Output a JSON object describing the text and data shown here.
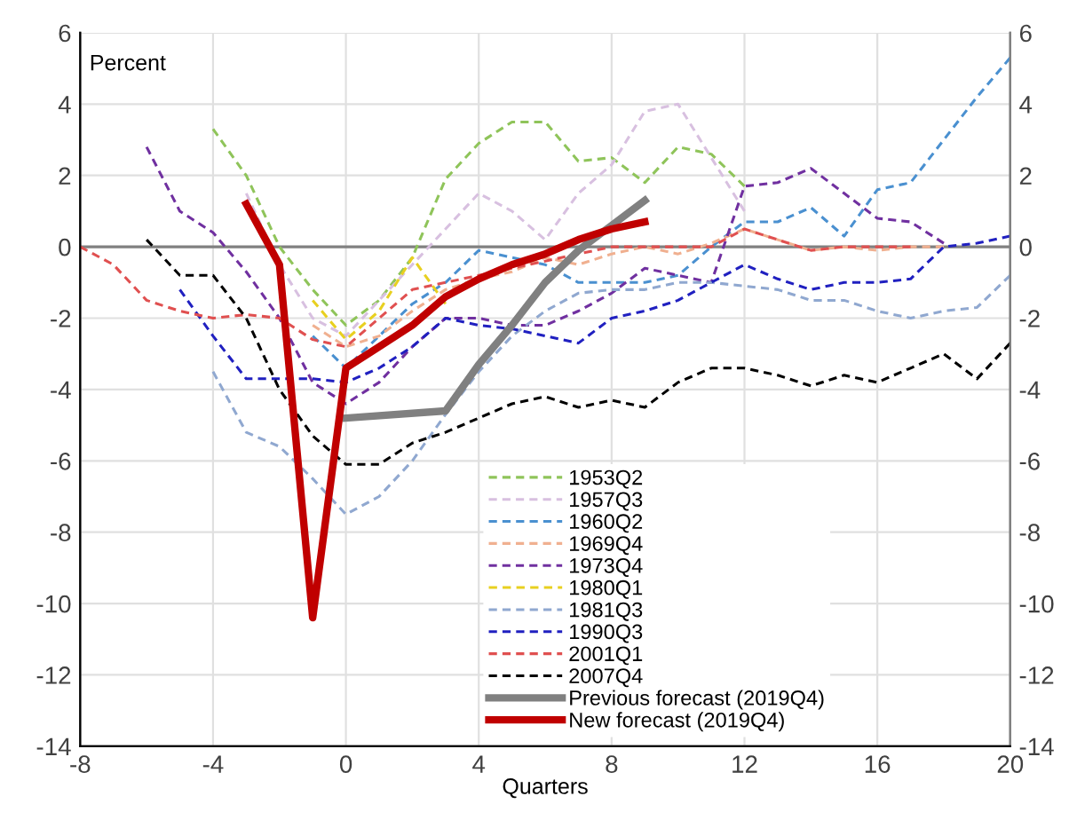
{
  "chart_data": {
    "type": "line",
    "ylabel": "Percent",
    "xlabel": "Quarters",
    "xlim": [
      -8,
      20
    ],
    "xticks": [
      -8,
      -4,
      0,
      4,
      8,
      12,
      16,
      20
    ],
    "ylim": [
      -14,
      6
    ],
    "yticks": [
      -14,
      -12,
      -10,
      -8,
      -6,
      -4,
      -2,
      0,
      2,
      4,
      6
    ],
    "y2lim": [
      -14,
      6
    ],
    "y2ticks": [
      -14,
      -12,
      -10,
      -8,
      -6,
      -4,
      -2,
      0,
      2,
      4,
      6
    ],
    "grid": true,
    "legend": "bottom",
    "line_style": "dashed",
    "ref_lines": [
      {
        "axis": "y",
        "value": 0,
        "color": "#808080",
        "line_style": "solid"
      }
    ],
    "series": [
      {
        "name": "1953Q2",
        "color": "#8fc45a",
        "x": [
          -4,
          -3,
          -2,
          -1,
          0,
          1,
          2,
          3,
          4,
          5,
          6,
          7,
          8,
          9,
          10,
          11,
          12
        ],
        "values": [
          3.3,
          2.0,
          0.0,
          -1.2,
          -2.2,
          -1.5,
          -0.3,
          1.9,
          2.9,
          3.5,
          3.5,
          2.4,
          2.5,
          1.8,
          2.8,
          2.6,
          1.7
        ]
      },
      {
        "name": "1957Q3",
        "color": "#d8c0e0",
        "x": [
          -3,
          -2,
          -1,
          0,
          1,
          2,
          3,
          4,
          5,
          6,
          7,
          8,
          9,
          10,
          11,
          12
        ],
        "values": [
          1.5,
          -0.5,
          -2.0,
          -2.5,
          -1.5,
          -0.5,
          0.5,
          1.5,
          1.0,
          0.2,
          1.5,
          2.3,
          3.8,
          4.0,
          2.5,
          1.0
        ]
      },
      {
        "name": "1960Q2",
        "color": "#4a90d0",
        "x": [
          -1,
          0,
          1,
          2,
          3,
          4,
          5,
          6,
          7,
          8,
          9,
          10,
          11,
          12,
          13,
          14,
          15,
          16,
          17,
          18,
          19,
          20
        ],
        "values": [
          -2.5,
          -3.4,
          -2.5,
          -1.6,
          -1.0,
          -0.1,
          -0.3,
          -0.5,
          -1.0,
          -1.0,
          -1.0,
          -0.8,
          0.0,
          0.7,
          0.7,
          1.1,
          0.3,
          1.6,
          1.8,
          3.0,
          4.2,
          5.3
        ]
      },
      {
        "name": "1969Q4",
        "color": "#f0b090",
        "x": [
          -1,
          0,
          1,
          2,
          3,
          4,
          5,
          6,
          7,
          8,
          9,
          10,
          11,
          12,
          13,
          14,
          15,
          16,
          17,
          18
        ],
        "values": [
          -2.2,
          -2.8,
          -2.5,
          -1.8,
          -1.2,
          -0.9,
          -0.7,
          -0.3,
          -0.5,
          -0.2,
          0.0,
          -0.2,
          0.1,
          0.5,
          0.2,
          -0.1,
          0.0,
          -0.1,
          0.0,
          0.0
        ]
      },
      {
        "name": "1973Q4",
        "color": "#7030a0",
        "x": [
          -6,
          -5,
          -4,
          -3,
          -2,
          -1,
          0,
          1,
          2,
          3,
          4,
          5,
          6,
          7,
          8,
          9,
          10,
          11,
          12,
          13,
          14,
          15,
          16,
          17,
          18
        ],
        "values": [
          2.8,
          1.0,
          0.4,
          -0.7,
          -2.0,
          -3.8,
          -4.4,
          -3.8,
          -2.8,
          -2.0,
          -2.0,
          -2.2,
          -2.2,
          -1.8,
          -1.3,
          -0.6,
          -0.8,
          -1.0,
          1.7,
          1.8,
          2.2,
          1.5,
          0.8,
          0.7,
          0.1
        ]
      },
      {
        "name": "1980Q1",
        "color": "#e8d020",
        "x": [
          -1,
          0,
          1,
          2,
          3
        ],
        "values": [
          -1.5,
          -2.6,
          -1.8,
          -0.3,
          -1.6
        ]
      },
      {
        "name": "1981Q3",
        "color": "#90a8d0",
        "x": [
          -4,
          -3,
          -2,
          -1,
          0,
          1,
          2,
          3,
          4,
          5,
          6,
          7,
          8,
          9,
          10,
          11,
          12,
          13,
          14,
          15,
          16,
          17,
          18,
          19,
          20
        ],
        "values": [
          -3.5,
          -5.2,
          -5.6,
          -6.5,
          -7.5,
          -7.0,
          -6.0,
          -4.7,
          -3.5,
          -2.5,
          -1.8,
          -1.3,
          -1.2,
          -1.2,
          -1.0,
          -1.0,
          -1.1,
          -1.2,
          -1.5,
          -1.5,
          -1.8,
          -2.0,
          -1.8,
          -1.7,
          -0.8
        ]
      },
      {
        "name": "1990Q3",
        "color": "#2020c0",
        "x": [
          -5,
          -4,
          -3,
          -2,
          -1,
          0,
          1,
          2,
          3,
          4,
          5,
          6,
          7,
          8,
          9,
          10,
          11,
          12,
          13,
          14,
          15,
          16,
          17,
          18,
          19,
          20
        ],
        "values": [
          -1.2,
          -2.5,
          -3.7,
          -3.7,
          -3.7,
          -3.8,
          -3.4,
          -2.8,
          -2.0,
          -2.2,
          -2.3,
          -2.5,
          -2.7,
          -2.0,
          -1.8,
          -1.5,
          -1.0,
          -0.5,
          -0.9,
          -1.2,
          -1.0,
          -1.0,
          -0.9,
          0.0,
          0.1,
          0.3
        ]
      },
      {
        "name": "2001Q1",
        "color": "#e05050",
        "x": [
          -8,
          -7,
          -6,
          -5,
          -4,
          -3,
          -2,
          -1,
          0,
          1,
          2,
          3,
          4,
          5,
          6,
          7,
          8,
          9,
          10,
          11,
          12,
          13,
          14,
          15,
          16,
          17
        ],
        "values": [
          0.0,
          -0.5,
          -1.5,
          -1.8,
          -2.0,
          -1.9,
          -2.0,
          -2.6,
          -2.8,
          -2.0,
          -1.2,
          -1.0,
          -0.8,
          -0.6,
          -0.4,
          -0.2,
          0.0,
          0.0,
          0.0,
          0.0,
          0.5,
          0.2,
          -0.1,
          0.0,
          0.0,
          0.0
        ]
      },
      {
        "name": "2007Q4",
        "color": "#000000",
        "x": [
          -6,
          -5,
          -4,
          -3,
          -2,
          -1,
          0,
          1,
          2,
          3,
          4,
          5,
          6,
          7,
          8,
          9,
          10,
          11,
          12,
          13,
          14,
          15,
          16,
          17,
          18,
          19,
          20
        ],
        "values": [
          0.2,
          -0.8,
          -0.8,
          -2.0,
          -4.0,
          -5.3,
          -6.1,
          -6.1,
          -5.5,
          -5.2,
          -4.8,
          -4.4,
          -4.2,
          -4.5,
          -4.3,
          -4.5,
          -3.8,
          -3.4,
          -3.4,
          -3.6,
          -3.9,
          -3.6,
          -3.8,
          -3.4,
          -3.0,
          -3.7,
          -2.7
        ]
      },
      {
        "name": "Previous forecast (2019Q4)",
        "color": "#808080",
        "line_style": "solid",
        "x": [
          0,
          3,
          4,
          5,
          6,
          7,
          8,
          9
        ],
        "values": [
          -4.8,
          -4.6,
          -3.3,
          -2.2,
          -1.0,
          -0.1,
          0.6,
          1.3
        ]
      },
      {
        "name": "New forecast (2019Q4)",
        "color": "#c00000",
        "line_style": "solid",
        "x": [
          -3,
          -2,
          -1,
          0,
          1,
          2,
          3,
          4,
          5,
          6,
          7,
          8,
          9
        ],
        "values": [
          1.2,
          -0.5,
          -10.4,
          -3.4,
          -2.8,
          -2.2,
          -1.4,
          -0.9,
          -0.5,
          -0.2,
          0.2,
          0.5,
          0.7
        ]
      }
    ]
  }
}
